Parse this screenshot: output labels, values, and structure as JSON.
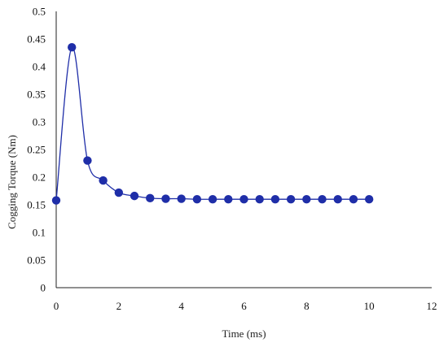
{
  "chart_data": {
    "type": "scatter",
    "title": "",
    "xlabel": "Time (ms)",
    "ylabel": "Cogging Torque (Nm)",
    "xlim": [
      0,
      12
    ],
    "ylim": [
      0,
      0.5
    ],
    "xticks": [
      "0",
      "2",
      "4",
      "6",
      "8",
      "10",
      "12"
    ],
    "yticks": [
      "0",
      "0.05",
      "0.1",
      "0.15",
      "0.2",
      "0.25",
      "0.3",
      "0.35",
      "0.4",
      "0.45",
      "0.5"
    ],
    "grid": false,
    "smooth_line": true,
    "series": [
      {
        "color": "#1f2ea8",
        "x": [
          0,
          0.5,
          1,
          1.5,
          2,
          2.5,
          3,
          3.5,
          4,
          4.5,
          5,
          5.5,
          6,
          6.5,
          7,
          7.5,
          8,
          8.5,
          9,
          9.5,
          10
        ],
        "y": [
          0.158,
          0.435,
          0.23,
          0.194,
          0.172,
          0.166,
          0.162,
          0.161,
          0.161,
          0.16,
          0.16,
          0.16,
          0.16,
          0.16,
          0.16,
          0.16,
          0.16,
          0.16,
          0.16,
          0.16,
          0.16
        ]
      }
    ]
  }
}
